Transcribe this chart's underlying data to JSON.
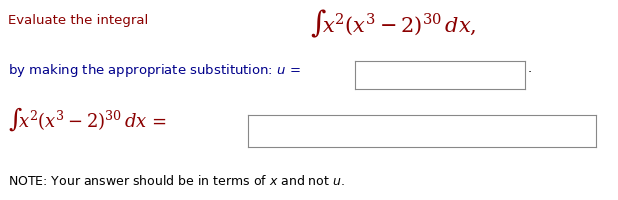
{
  "title_text": "Evaluate the integral",
  "note_text": "NOTE: Your answer should be in terms of ",
  "note_x_italic": " and not ",
  "bg_color": "#ffffff",
  "title_color": "#8B0000",
  "label_color": "#00008B",
  "math_color": "#8B0000",
  "black_color": "#000000",
  "fig_width": 6.18,
  "fig_height": 2.01,
  "dpi": 100
}
